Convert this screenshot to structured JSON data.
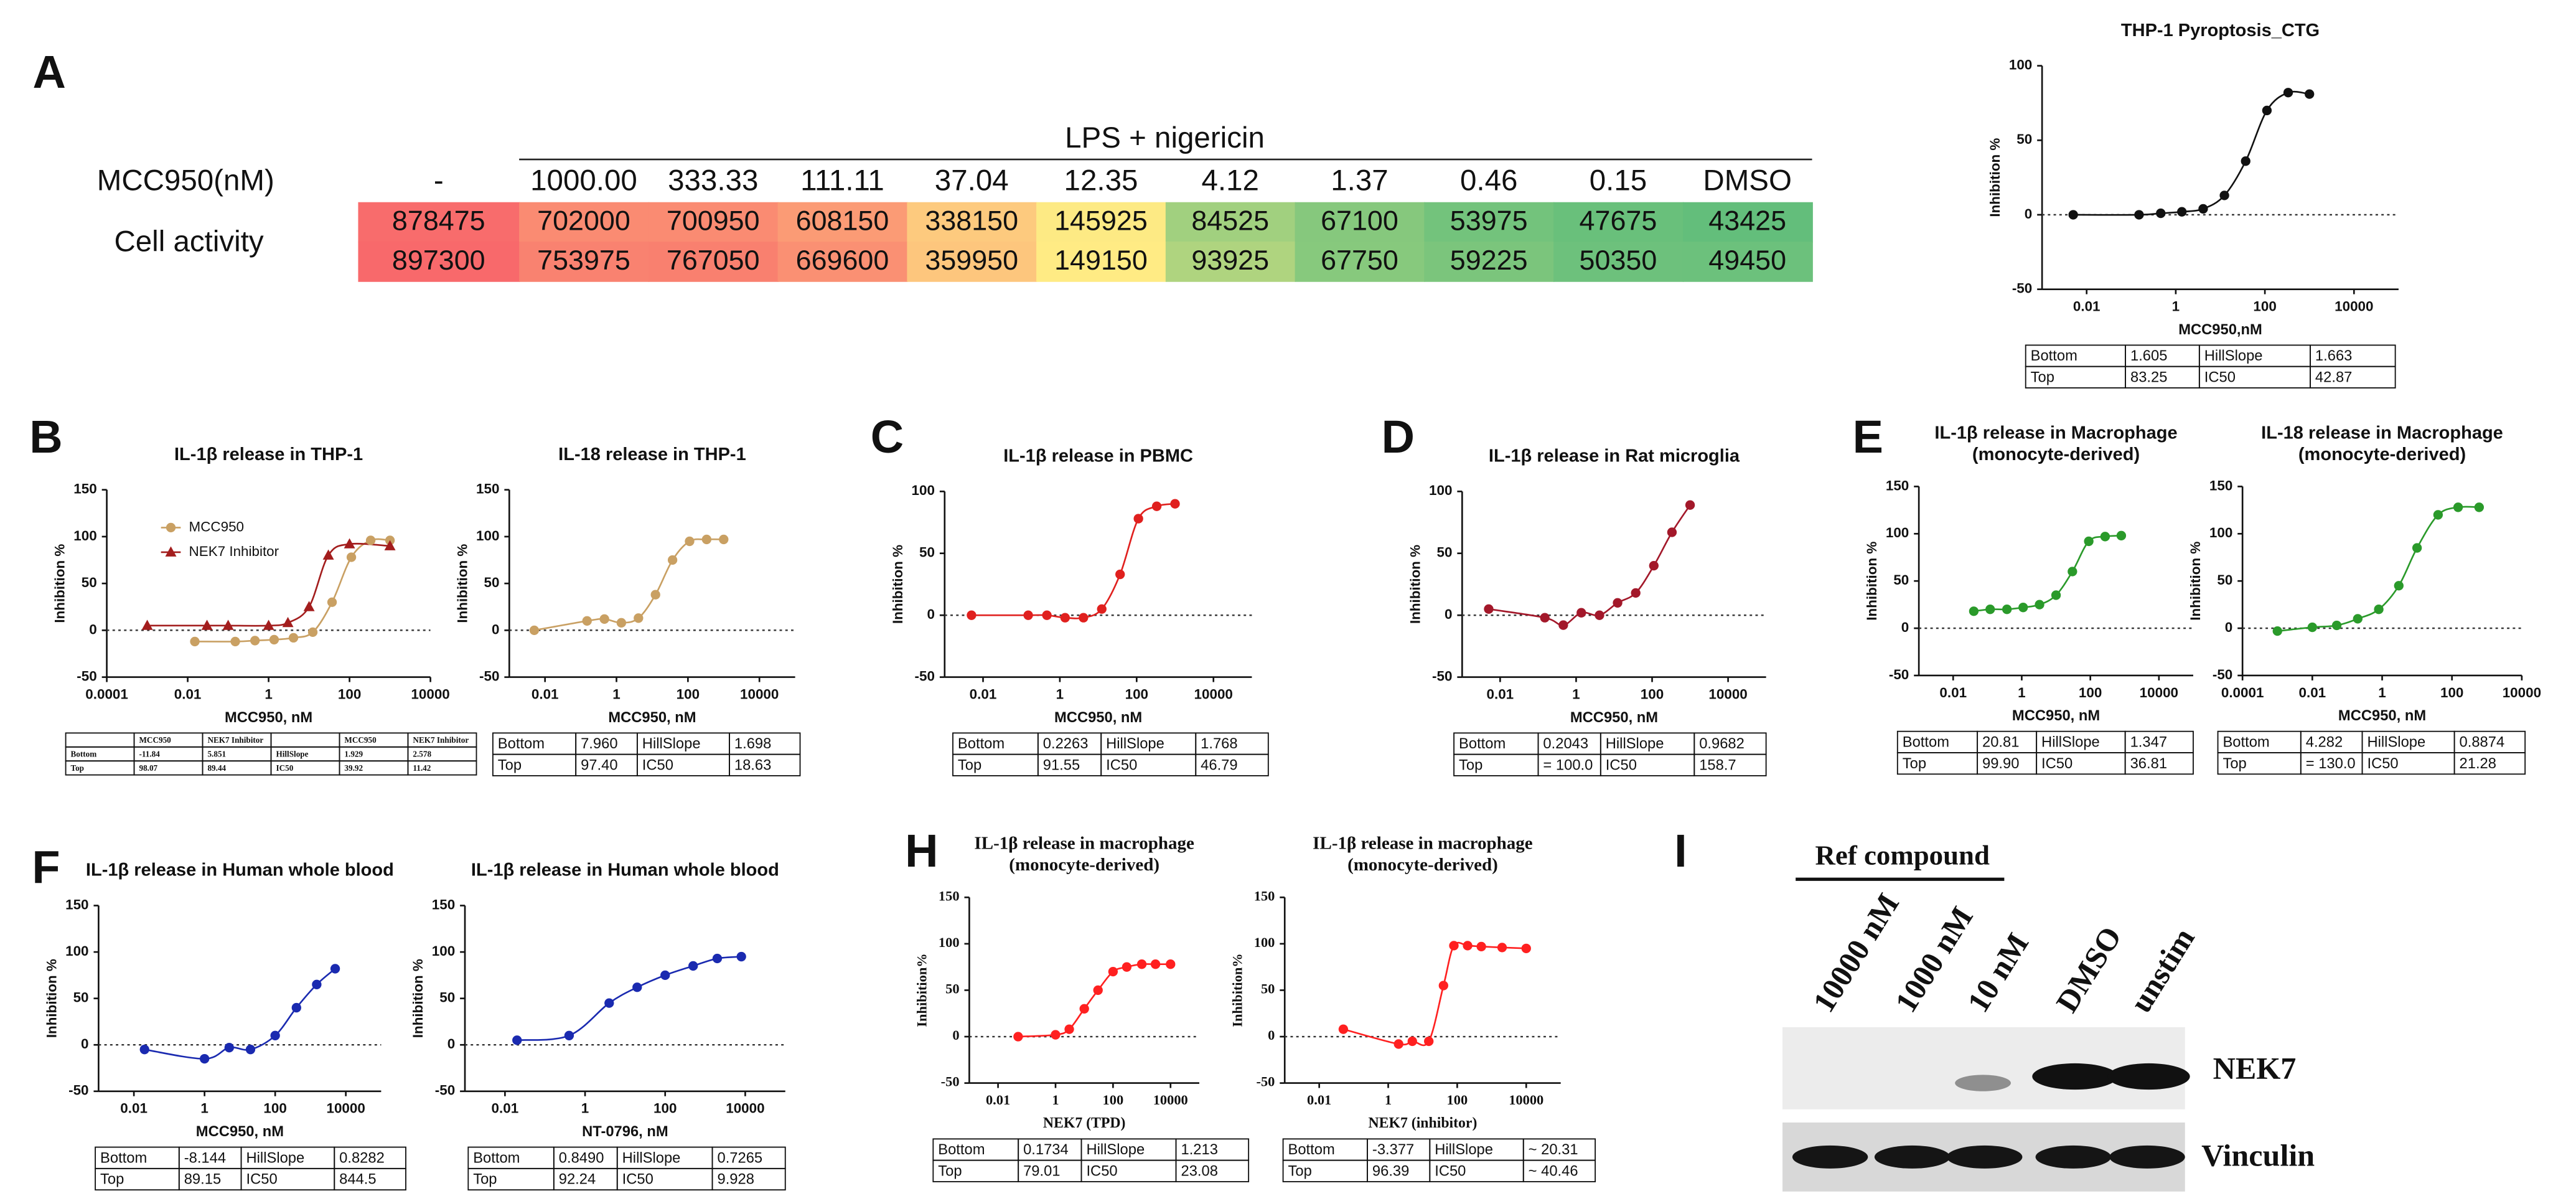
{
  "panels": [
    "A",
    "B",
    "C",
    "D",
    "E",
    "F",
    "H",
    "I"
  ],
  "heatmap": {
    "header": "LPS + nigericin",
    "row_label": "MCC950(nM)",
    "columns": [
      "-",
      "1000.00",
      "333.33",
      "111.11",
      "37.04",
      "12.35",
      "4.12",
      "1.37",
      "0.46",
      "0.15",
      "DMSO"
    ],
    "value_label": "Cell activity",
    "values": [
      [
        878475,
        702000,
        700950,
        608150,
        338150,
        145925,
        84525,
        67100,
        53975,
        47675,
        43425
      ],
      [
        897300,
        753975,
        767050,
        669600,
        359950,
        149150,
        93925,
        67750,
        59225,
        50350,
        49450
      ]
    ]
  },
  "chart_data": [
    {
      "type": "scatter",
      "title": "THP-1 Pyroptosis_CTG",
      "xlabel": "MCC950,nM",
      "ylabel": "Inhibition %",
      "xscale": "log",
      "xlim": [
        0.001,
        100000
      ],
      "xticks": [
        0.01,
        1,
        100,
        10000
      ],
      "ylim": [
        -50,
        100
      ],
      "yticks": [
        -50,
        0,
        50,
        100
      ],
      "zero_line": true,
      "series": [
        {
          "color": "#111111",
          "x": [
            0.005,
            0.15,
            0.46,
            1.37,
            4.12,
            12.35,
            37.04,
            111.11,
            333.33,
            1000
          ],
          "values": [
            0,
            0,
            1,
            2,
            4,
            13,
            36,
            70,
            82,
            81
          ]
        }
      ],
      "table": [
        [
          "Bottom",
          "1.605",
          "HillSlope",
          "1.663"
        ],
        [
          "Top",
          "83.25",
          "IC50",
          "42.87"
        ]
      ]
    },
    {
      "type": "scatter",
      "title": "IL-1β release in THP-1",
      "xlabel": "MCC950, nM",
      "ylabel": "Inhibition %",
      "xscale": "log",
      "xlim": [
        0.0001,
        10000
      ],
      "xticks": [
        0.0001,
        0.01,
        1,
        100,
        10000
      ],
      "ylim": [
        -50,
        150
      ],
      "yticks": [
        -50,
        0,
        50,
        100,
        150
      ],
      "zero_line": true,
      "legend": "upper left",
      "series": [
        {
          "name": "MCC950",
          "color": "#c9a063",
          "marker": "circle",
          "x": [
            0.015,
            0.15,
            0.46,
            1.37,
            4.12,
            12.35,
            37.04,
            111.11,
            333.33,
            1000
          ],
          "values": [
            -12,
            -12,
            -11,
            -10,
            -8,
            -2,
            30,
            78,
            96,
            96
          ]
        },
        {
          "name": "NEK7 Inhibitor",
          "color": "#a31d1d",
          "marker": "triangle",
          "x": [
            0.001,
            0.03,
            0.1,
            1,
            3,
            10,
            30,
            100,
            1000
          ],
          "values": [
            5,
            5,
            5,
            5,
            8,
            25,
            80,
            92,
            90
          ]
        }
      ],
      "table": [
        [
          "",
          "MCC950",
          "NEK7 Inhibitor",
          "",
          "MCC950",
          "NEK7 Inhibitor"
        ],
        [
          "Bottom",
          "-11.84",
          "5.851",
          "HillSlope",
          "1.929",
          "2.578"
        ],
        [
          "Top",
          "98.07",
          "89.44",
          "IC50",
          "39.92",
          "11.42"
        ]
      ]
    },
    {
      "type": "scatter",
      "title": "IL-18 release in THP-1",
      "xlabel": "MCC950, nM",
      "ylabel": "Inhibition %",
      "xscale": "log",
      "xlim": [
        0.001,
        100000
      ],
      "xticks": [
        0.01,
        1,
        100,
        10000
      ],
      "ylim": [
        -50,
        150
      ],
      "yticks": [
        -50,
        0,
        50,
        100,
        150
      ],
      "zero_line": true,
      "series": [
        {
          "color": "#c9a063",
          "x": [
            0.005,
            0.15,
            0.46,
            1.37,
            4.12,
            12.35,
            37.04,
            111.11,
            333.33,
            1000
          ],
          "values": [
            0,
            10,
            12,
            8,
            13,
            38,
            75,
            95,
            97,
            97
          ]
        }
      ],
      "table": [
        [
          "Bottom",
          "7.960",
          "HillSlope",
          "1.698"
        ],
        [
          "Top",
          "97.40",
          "IC50",
          "18.63"
        ]
      ]
    },
    {
      "type": "scatter",
      "title": "IL-1β release in PBMC",
      "xlabel": "MCC950, nM",
      "ylabel": "Inhibition %",
      "xscale": "log",
      "xlim": [
        0.001,
        100000
      ],
      "xticks": [
        0.01,
        1,
        100,
        10000
      ],
      "ylim": [
        -50,
        100
      ],
      "yticks": [
        -50,
        0,
        50,
        100
      ],
      "zero_line": true,
      "series": [
        {
          "color": "#e0201e",
          "x": [
            0.005,
            0.15,
            0.46,
            1.37,
            4.12,
            12.35,
            37.04,
            111.11,
            333.33,
            1000
          ],
          "values": [
            0,
            0,
            0,
            -2,
            -2,
            5,
            33,
            78,
            88,
            90
          ]
        }
      ],
      "table": [
        [
          "Bottom",
          "0.2263",
          "HillSlope",
          "1.768"
        ],
        [
          "Top",
          "91.55",
          "IC50",
          "46.79"
        ]
      ]
    },
    {
      "type": "scatter",
      "title": "IL-1β release in Rat microglia",
      "xlabel": "MCC950, nM",
      "ylabel": "Inhibition %",
      "xscale": "log",
      "xlim": [
        0.001,
        100000
      ],
      "xticks": [
        0.01,
        1,
        100,
        10000
      ],
      "ylim": [
        -50,
        100
      ],
      "yticks": [
        -50,
        0,
        50,
        100
      ],
      "zero_line": true,
      "series": [
        {
          "color": "#a3182a",
          "x": [
            0.005,
            0.15,
            0.46,
            1.37,
            4.12,
            12.35,
            37.04,
            111.11,
            333.33,
            1000
          ],
          "values": [
            5,
            -2,
            -8,
            2,
            0,
            10,
            18,
            40,
            67,
            89
          ]
        }
      ],
      "table": [
        [
          "Bottom",
          "0.2043",
          "HillSlope",
          "0.9682"
        ],
        [
          "Top",
          "= 100.0",
          "IC50",
          "158.7"
        ]
      ]
    },
    {
      "type": "scatter",
      "title": "IL-1β release in Macrophage",
      "subtitle": "(monocyte-derived)",
      "xlabel": "MCC950, nM",
      "ylabel": "Inhibition %",
      "xscale": "log",
      "xlim": [
        0.001,
        100000
      ],
      "xticks": [
        0.01,
        1,
        100,
        10000
      ],
      "ylim": [
        -50,
        150
      ],
      "yticks": [
        -50,
        0,
        50,
        100,
        150
      ],
      "zero_line": true,
      "series": [
        {
          "color": "#2a9a2a",
          "x": [
            0.04,
            0.12,
            0.37,
            1.1,
            3.3,
            10,
            30,
            90,
            270,
            800
          ],
          "values": [
            18,
            20,
            20,
            22,
            25,
            35,
            60,
            92,
            97,
            98
          ]
        }
      ],
      "table": [
        [
          "Bottom",
          "20.81",
          "HillSlope",
          "1.347"
        ],
        [
          "Top",
          "99.90",
          "IC50",
          "36.81"
        ]
      ]
    },
    {
      "type": "scatter",
      "title": "IL-18 release in Macrophage",
      "subtitle": "(monocyte-derived)",
      "xlabel": "MCC950, nM",
      "ylabel": "Inhibition %",
      "xscale": "log",
      "xlim": [
        0.0001,
        10000
      ],
      "xticks": [
        0.0001,
        0.01,
        1,
        100,
        10000
      ],
      "ylim": [
        -50,
        150
      ],
      "yticks": [
        -50,
        0,
        50,
        100,
        150
      ],
      "zero_line": true,
      "series": [
        {
          "color": "#2a9a2a",
          "x": [
            0.001,
            0.01,
            0.05,
            0.2,
            0.8,
            3,
            10,
            40,
            150,
            600
          ],
          "values": [
            -3,
            1,
            3,
            10,
            20,
            45,
            85,
            120,
            128,
            128
          ]
        }
      ],
      "table": [
        [
          "Bottom",
          "4.282",
          "HillSlope",
          "0.8874"
        ],
        [
          "Top",
          "= 130.0",
          "IC50",
          "21.28"
        ]
      ]
    },
    {
      "type": "scatter",
      "title": "IL-1β release in Human whole blood",
      "xlabel": "MCC950, nM",
      "ylabel": "Inhibition %",
      "xscale": "log",
      "xlim": [
        0.001,
        100000
      ],
      "xticks": [
        0.01,
        1,
        100,
        10000
      ],
      "ylim": [
        -50,
        150
      ],
      "yticks": [
        -50,
        0,
        50,
        100,
        150
      ],
      "zero_line": true,
      "series": [
        {
          "color": "#1a2ab0",
          "x": [
            0.02,
            1,
            5,
            20,
            100,
            400,
            1500,
            5000
          ],
          "values": [
            -5,
            -15,
            -3,
            -5,
            10,
            40,
            65,
            82
          ]
        }
      ],
      "table": [
        [
          "Bottom",
          "-8.144",
          "HillSlope",
          "0.8282"
        ],
        [
          "Top",
          "89.15",
          "IC50",
          "844.5"
        ]
      ]
    },
    {
      "type": "scatter",
      "title": "IL-1β release in Human whole blood",
      "xlabel": "NT-0796, nM",
      "ylabel": "Inhibition %",
      "xscale": "log",
      "xlim": [
        0.001,
        100000
      ],
      "xticks": [
        0.01,
        1,
        100,
        10000
      ],
      "ylim": [
        -50,
        150
      ],
      "yticks": [
        -50,
        0,
        50,
        100,
        150
      ],
      "zero_line": true,
      "series": [
        {
          "color": "#1a2ab0",
          "x": [
            0.02,
            0.4,
            4,
            20,
            100,
            500,
            2000,
            8000
          ],
          "values": [
            5,
            10,
            45,
            62,
            75,
            85,
            93,
            95
          ]
        }
      ],
      "table": [
        [
          "Bottom",
          "0.8490",
          "HillSlope",
          "0.7265"
        ],
        [
          "Top",
          "92.24",
          "IC50",
          "9.928"
        ]
      ]
    },
    {
      "type": "scatter",
      "title": "IL-1β release in macrophage",
      "subtitle": "(monocyte-derived)",
      "xlabel": "NEK7 (TPD)",
      "ylabel": "Inhibition%",
      "xscale": "log",
      "xlim": [
        0.001,
        100000
      ],
      "xticks": [
        0.01,
        1,
        100,
        10000
      ],
      "ylim": [
        -50,
        150
      ],
      "yticks": [
        -50,
        0,
        50,
        100,
        150
      ],
      "zero_line": true,
      "series": [
        {
          "color": "#ff2020",
          "x": [
            0.05,
            1,
            3,
            10,
            30,
            100,
            300,
            1000,
            3000,
            10000
          ],
          "values": [
            0,
            2,
            8,
            30,
            50,
            70,
            75,
            78,
            78,
            78
          ]
        }
      ],
      "table": [
        [
          "Bottom",
          "0.1734",
          "HillSlope",
          "1.213"
        ],
        [
          "Top",
          "79.01",
          "IC50",
          "23.08"
        ]
      ]
    },
    {
      "type": "scatter",
      "title": "IL-1β release in macrophage",
      "subtitle": "(monocyte-derived)",
      "xlabel": "NEK7 (inhibitor)",
      "ylabel": "Inhibition%",
      "xscale": "log",
      "xlim": [
        0.001,
        100000
      ],
      "xticks": [
        0.01,
        1,
        100,
        10000
      ],
      "ylim": [
        -50,
        150
      ],
      "yticks": [
        -50,
        0,
        50,
        100,
        150
      ],
      "zero_line": true,
      "series": [
        {
          "color": "#ff2020",
          "x": [
            0.05,
            2,
            5,
            15,
            40,
            80,
            200,
            500,
            2000,
            10000
          ],
          "values": [
            8,
            -8,
            -5,
            -5,
            55,
            98,
            98,
            97,
            96,
            95
          ]
        }
      ],
      "table": [
        [
          "Bottom",
          "-3.377",
          "HillSlope",
          "~ 20.31"
        ],
        [
          "Top",
          "96.39",
          "IC50",
          "~ 40.46"
        ]
      ]
    }
  ],
  "blot": {
    "title": "Ref compound",
    "lanes": [
      "10000 nM",
      "1000 nM",
      "10 nM",
      "DMSO",
      "unstim"
    ],
    "bands": [
      "NEK7",
      "Vinculin"
    ]
  }
}
